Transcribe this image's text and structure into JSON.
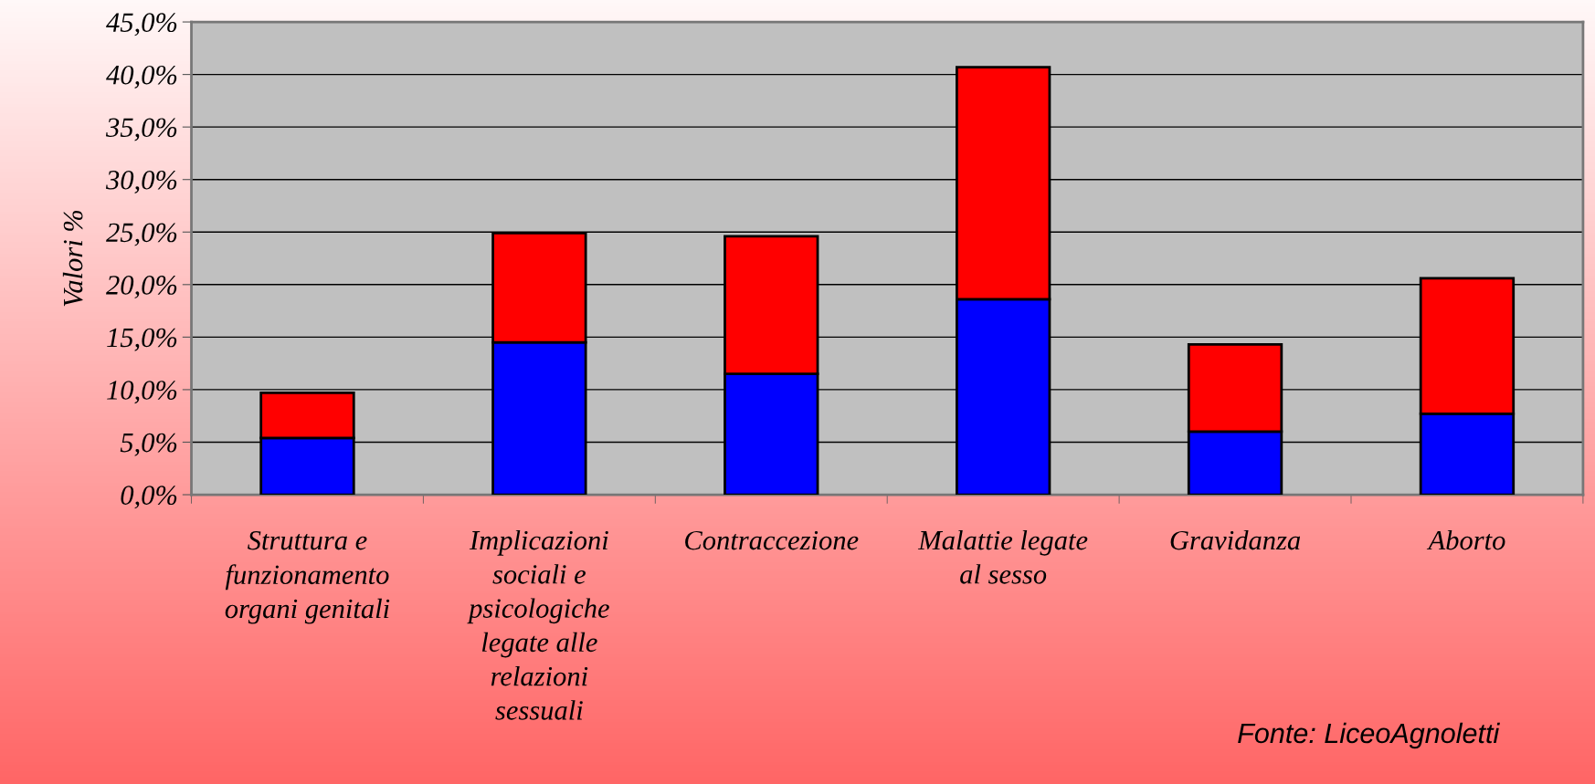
{
  "chart_data": {
    "type": "bar",
    "stacked": true,
    "ylabel": "Valori %",
    "categories": [
      "Struttura e\nfunzionamento\norgani genitali",
      "Implicazioni\nsociali e\npsicologiche\nlegate alle\nrelazioni\nsessuali",
      "Contraccezione",
      "Malattie legate\nal sesso",
      "Gravidanza",
      "Aborto"
    ],
    "series": [
      {
        "color": "#0000ff",
        "values": [
          5.4,
          14.5,
          11.5,
          18.6,
          6.0,
          7.7
        ]
      },
      {
        "color": "#ff0000",
        "values": [
          4.3,
          10.4,
          13.1,
          22.1,
          8.3,
          12.9
        ]
      }
    ],
    "ylim": [
      0,
      45
    ],
    "yticks": [
      {
        "value": 0,
        "label": "0,0%"
      },
      {
        "value": 5,
        "label": "5,0%"
      },
      {
        "value": 10,
        "label": "10,0%"
      },
      {
        "value": 15,
        "label": "15,0%"
      },
      {
        "value": 20,
        "label": "20,0%"
      },
      {
        "value": 25,
        "label": "25,0%"
      },
      {
        "value": 30,
        "label": "30,0%"
      },
      {
        "value": 35,
        "label": "35,0%"
      },
      {
        "value": 40,
        "label": "40,0%"
      },
      {
        "value": 45,
        "label": "45,0%"
      }
    ],
    "grid": "y",
    "legend": false,
    "annotations": [
      "Fonte: LiceoAgnoletti"
    ]
  }
}
